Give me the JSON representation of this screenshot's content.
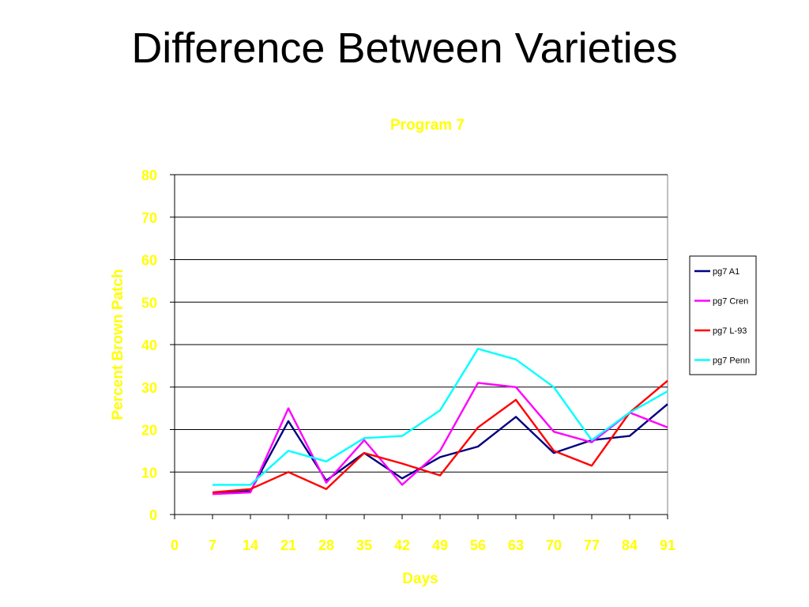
{
  "slide": {
    "title": "Difference Between Varieties"
  },
  "colors": {
    "label": "#ffff00",
    "gridline": "#000000",
    "plot_border": "#808080"
  },
  "chart_data": {
    "type": "line",
    "title": "Program 7",
    "xlabel": "Days",
    "ylabel": "Percent Brown Patch",
    "xlim": [
      0,
      91
    ],
    "ylim": [
      0,
      80
    ],
    "xticks": [
      0,
      7,
      14,
      21,
      28,
      35,
      42,
      49,
      56,
      63,
      70,
      77,
      84,
      91
    ],
    "yticks": [
      0,
      10,
      20,
      30,
      40,
      50,
      60,
      70,
      80
    ],
    "grid": "horizontal",
    "legend_position": "right",
    "x": [
      7,
      14,
      21,
      28,
      35,
      42,
      49,
      56,
      63,
      70,
      77,
      84,
      91
    ],
    "series": [
      {
        "name": "pg7 A1",
        "color": "#000080",
        "values": [
          5,
          5.5,
          22,
          8,
          14.5,
          8.5,
          13.5,
          16,
          23,
          14.5,
          17.5,
          18.5,
          26
        ]
      },
      {
        "name": "pg7 Cren",
        "color": "#ff00ff",
        "values": [
          4.8,
          5.2,
          25,
          7.5,
          17.5,
          7,
          15,
          31,
          30,
          19.5,
          17,
          24,
          20.5
        ]
      },
      {
        "name": "pg7 L-93",
        "color": "#ff0000",
        "values": [
          5.2,
          6,
          10,
          6,
          14.5,
          12,
          9.2,
          20.5,
          27,
          15,
          11.5,
          24,
          31.5
        ]
      },
      {
        "name": "pg7 Penn",
        "color": "#00ffff",
        "values": [
          7,
          7,
          15,
          12.5,
          18,
          18.5,
          24.5,
          39,
          36.5,
          30,
          17.5,
          24,
          29
        ]
      }
    ]
  }
}
